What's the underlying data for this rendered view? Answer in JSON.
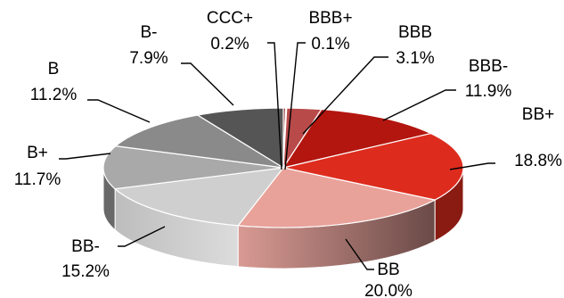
{
  "chart_data": {
    "type": "pie",
    "title": "",
    "slices": [
      {
        "label": "CCC+",
        "value": 0.2,
        "pct_text": "0.2%",
        "color": "#8b1a1a"
      },
      {
        "label": "BBB+",
        "value": 0.1,
        "pct_text": "0.1%",
        "color": "#a52a2a"
      },
      {
        "label": "BBB",
        "value": 3.1,
        "pct_text": "3.1%",
        "color": "#b84a4a"
      },
      {
        "label": "BBB-",
        "value": 11.9,
        "pct_text": "11.9%",
        "color": "#b3160f"
      },
      {
        "label": "BB+",
        "value": 18.8,
        "pct_text": "18.8%",
        "color": "#dd2c1e"
      },
      {
        "label": "BB",
        "value": 20.0,
        "pct_text": "20.0%",
        "color": "#e8a29a"
      },
      {
        "label": "BB-",
        "value": 15.2,
        "pct_text": "15.2%",
        "color": "#cfcfcf"
      },
      {
        "label": "B+",
        "value": 11.7,
        "pct_text": "11.7%",
        "color": "#a9a9a9"
      },
      {
        "label": "B",
        "value": 11.2,
        "pct_text": "11.2%",
        "color": "#8a8a8a"
      },
      {
        "label": "B-",
        "value": 7.9,
        "pct_text": "7.9%",
        "color": "#555555"
      }
    ],
    "style": "3d-pie",
    "legend": "none"
  }
}
